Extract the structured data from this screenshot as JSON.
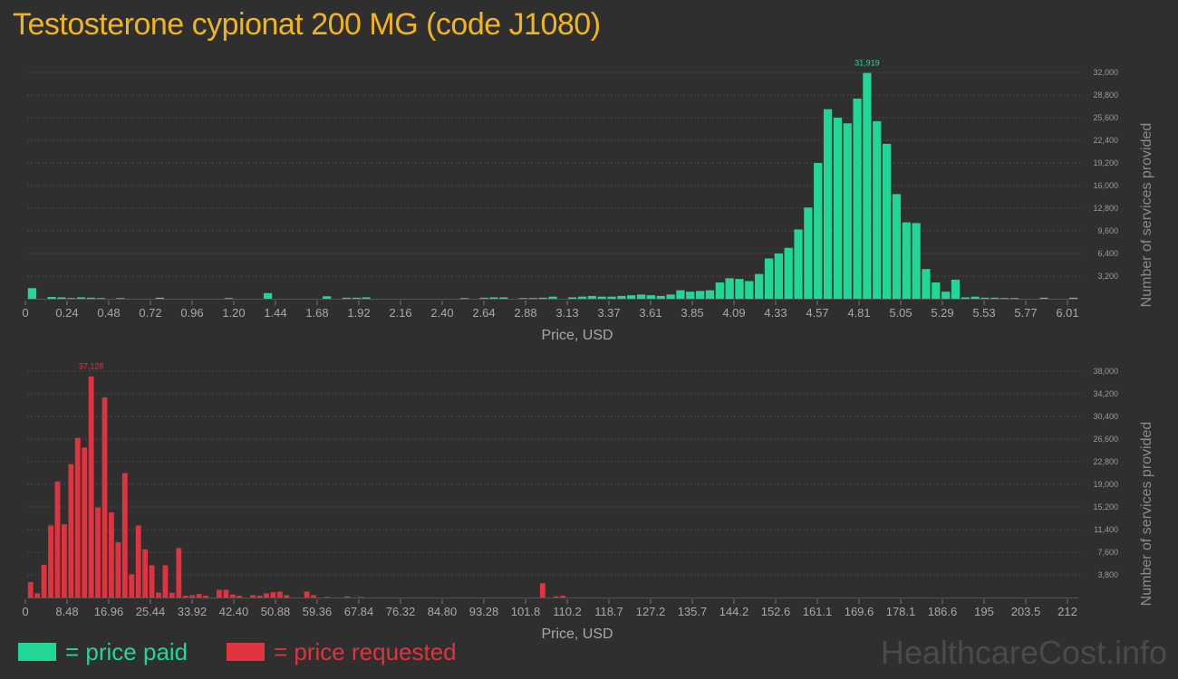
{
  "title": "Testosterone cypionat 200 MG (code J1080)",
  "colors": {
    "paid": "#22d795",
    "requested": "#e0323f",
    "title": "#f0b41c"
  },
  "legend": {
    "paid": "= price paid",
    "requested": "= price requested"
  },
  "watermark": "HealthcareCost.info",
  "chart_data": [
    {
      "type": "bar",
      "series_name": "price paid",
      "xlabel": "Price, USD",
      "ylabel": "Number of services provided",
      "xlim": [
        0,
        6.01
      ],
      "ylim": [
        0,
        32000
      ],
      "x_ticks": [
        "0",
        "0.24",
        "0.48",
        "0.72",
        "0.96",
        "1.20",
        "1.44",
        "1.68",
        "1.92",
        "2.16",
        "2.40",
        "2.64",
        "2.88",
        "3.13",
        "3.37",
        "3.61",
        "3.85",
        "4.09",
        "4.33",
        "4.57",
        "4.81",
        "5.05",
        "5.29",
        "5.53",
        "5.77",
        "6.01"
      ],
      "y_ticks": [
        "3,200",
        "6,400",
        "9,600",
        "12,800",
        "16,000",
        "19,200",
        "22,400",
        "25,600",
        "28,800",
        "32,000"
      ],
      "y_tick_values": [
        3200,
        6400,
        9600,
        12800,
        16000,
        19200,
        22400,
        25600,
        28800,
        32000
      ],
      "peak_label": "31,919",
      "grid": true,
      "values": [
        1500,
        0,
        250,
        200,
        100,
        200,
        150,
        100,
        0,
        100,
        0,
        0,
        0,
        150,
        0,
        0,
        0,
        0,
        0,
        0,
        100,
        0,
        0,
        0,
        800,
        0,
        0,
        0,
        0,
        0,
        350,
        0,
        150,
        150,
        200,
        0,
        0,
        0,
        0,
        0,
        0,
        0,
        0,
        0,
        100,
        0,
        150,
        200,
        200,
        0,
        100,
        100,
        150,
        300,
        0,
        200,
        300,
        400,
        300,
        300,
        400,
        500,
        600,
        500,
        400,
        600,
        1200,
        1000,
        1100,
        1200,
        2300,
        2900,
        2800,
        2500,
        3500,
        5700,
        6400,
        7200,
        9800,
        12900,
        19200,
        26800,
        25600,
        24800,
        28300,
        31919,
        25100,
        21900,
        14800,
        10800,
        10700,
        4200,
        2300,
        1000,
        2700,
        200,
        300,
        150,
        150,
        100,
        100,
        0,
        0,
        150,
        0,
        0,
        150
      ]
    },
    {
      "type": "bar",
      "series_name": "price requested",
      "xlabel": "Price, USD",
      "ylabel": "Number of services provided",
      "xlim": [
        0,
        212
      ],
      "ylim": [
        0,
        38000
      ],
      "x_ticks": [
        "0",
        "8.48",
        "16.96",
        "25.44",
        "33.92",
        "42.40",
        "50.88",
        "59.36",
        "67.84",
        "76.32",
        "84.80",
        "93.28",
        "101.8",
        "110.2",
        "118.7",
        "127.2",
        "135.7",
        "144.2",
        "152.6",
        "161.1",
        "169.6",
        "178.1",
        "186.6",
        "195",
        "203.5",
        "212"
      ],
      "y_ticks": [
        "3,800",
        "7,600",
        "11,400",
        "15,200",
        "19,000",
        "22,800",
        "26,600",
        "30,400",
        "34,200",
        "38,000"
      ],
      "y_tick_values": [
        3800,
        7600,
        11400,
        15200,
        19000,
        22800,
        26600,
        30400,
        34200,
        38000
      ],
      "peak_label": "37,128",
      "grid": true,
      "values": [
        2600,
        700,
        5500,
        12100,
        19500,
        12300,
        22400,
        26800,
        25200,
        37128,
        15100,
        33600,
        14300,
        9300,
        20900,
        3900,
        12100,
        8100,
        5400,
        800,
        5400,
        800,
        8300,
        300,
        400,
        600,
        300,
        0,
        1300,
        1300,
        500,
        300,
        0,
        400,
        300,
        700,
        900,
        1000,
        400,
        0,
        0,
        1000,
        400,
        0,
        100,
        0,
        0,
        200,
        0,
        100,
        0,
        0,
        0,
        0,
        0,
        0,
        0,
        0,
        0,
        0,
        0,
        0,
        0,
        0,
        0,
        0,
        0,
        0,
        0,
        0,
        0,
        0,
        0,
        0,
        0,
        0,
        2400,
        0,
        200,
        300,
        0,
        0,
        0,
        0,
        0,
        0,
        0,
        0,
        0,
        0,
        0,
        0,
        0,
        0,
        0,
        0,
        0,
        0,
        0,
        0,
        0,
        0,
        0,
        0,
        0,
        0,
        0,
        0,
        0,
        0,
        0,
        0,
        0,
        0,
        0,
        0,
        0,
        0,
        0,
        0,
        0,
        0,
        0,
        0,
        0,
        0,
        0,
        0,
        0,
        0,
        0,
        0,
        0,
        0,
        0,
        0,
        0,
        0,
        0,
        0,
        0,
        0,
        0,
        0,
        0,
        0,
        0,
        0,
        0,
        0,
        0,
        0,
        0,
        0,
        0,
        0
      ]
    }
  ]
}
